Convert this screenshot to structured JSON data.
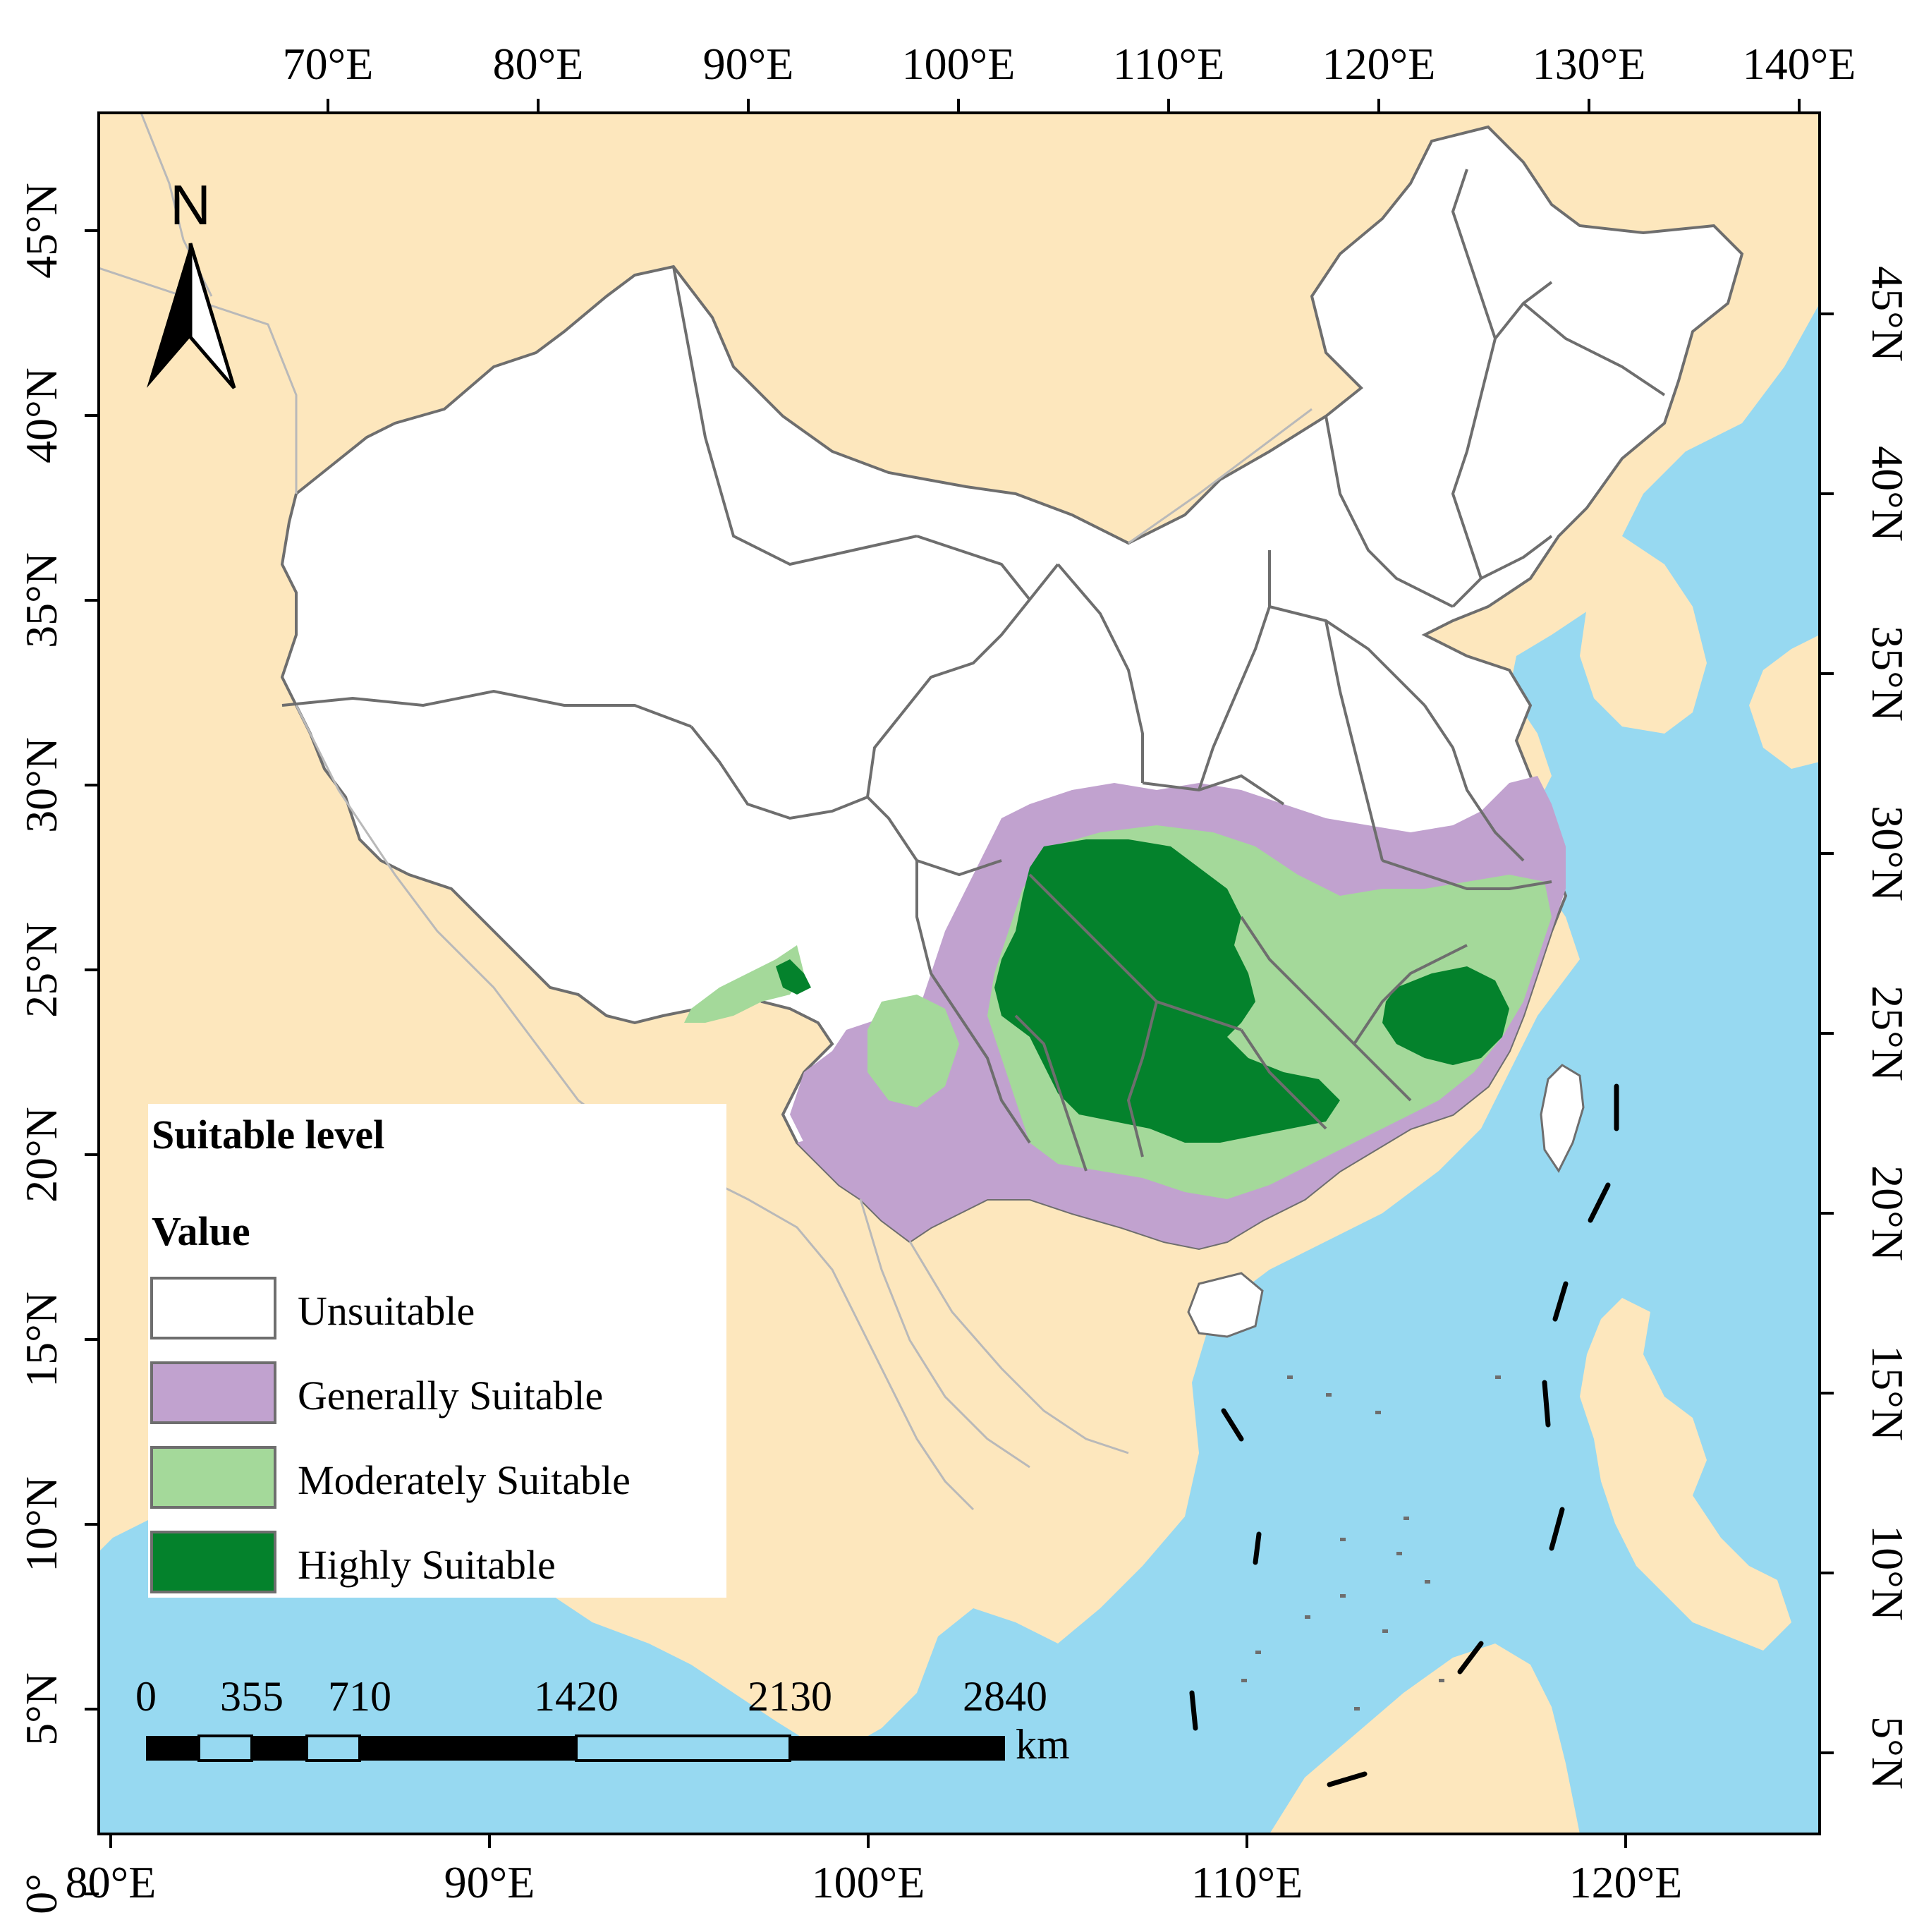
{
  "map": {
    "colors": {
      "land": "#fde7bd",
      "sea": "#97d9f1",
      "unsuitable": "#ffffff",
      "generally_suitable": "#c1a2cf",
      "moderately_suitable": "#a4d99a",
      "highly_suitable": "#04822c",
      "province_border": "#6e6e6e",
      "country_border": "#b9b9b9",
      "frame": "#000000"
    },
    "top_axis_labels": [
      "70°E",
      "80°E",
      "90°E",
      "100°E",
      "110°E",
      "120°E",
      "130°E",
      "140°E"
    ],
    "bottom_axis_labels": [
      "80°E",
      "90°E",
      "100°E",
      "110°E",
      "120°E"
    ],
    "left_axis_labels": [
      "45°N",
      "40°N",
      "35°N",
      "30°N",
      "25°N",
      "20°N",
      "15°N",
      "10°N",
      "5°N",
      "0°"
    ],
    "right_axis_labels": [
      "45°N",
      "40°N",
      "35°N",
      "30°N",
      "25°N",
      "20°N",
      "15°N",
      "10°N",
      "5°N"
    ]
  },
  "north_arrow": {
    "label": "N"
  },
  "legend": {
    "title": "Suitable level",
    "subtitle": "Value",
    "items": [
      {
        "label": "Unsuitable",
        "color": "#ffffff"
      },
      {
        "label": "Generally Suitable",
        "color": "#c1a2cf"
      },
      {
        "label": "Moderately Suitable",
        "color": "#a4d99a"
      },
      {
        "label": "Highly Suitable",
        "color": "#04822c"
      }
    ]
  },
  "scale_bar": {
    "labels": [
      "0",
      "355",
      "710",
      "1420",
      "2130",
      "2840"
    ],
    "unit": "km"
  }
}
